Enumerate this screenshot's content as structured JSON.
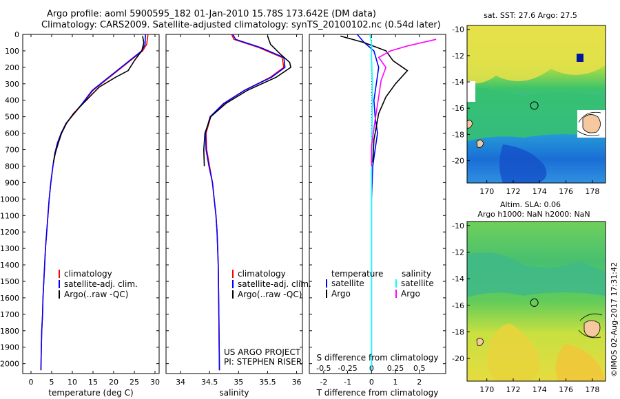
{
  "header": {
    "title_line1": "Argo profile: aoml 5900595_182 01-Jan-2010 15.78S 173.642E (DM data)",
    "title_line2": "Climatology: CARS2009. Satellite-adjusted climatology: synTS_20100102.nc (0.54d later)"
  },
  "chart_data": [
    {
      "type": "line",
      "id": "temperature",
      "xlabel": "temperature (deg C)",
      "ylabel": "",
      "xlim": [
        -2,
        31
      ],
      "ylim": [
        2060,
        0
      ],
      "xticks": [
        0,
        5,
        10,
        15,
        20,
        25,
        30
      ],
      "yticks": [
        0,
        100,
        200,
        300,
        400,
        500,
        600,
        700,
        800,
        900,
        1000,
        1100,
        1200,
        1300,
        1400,
        1500,
        1600,
        1700,
        1800,
        1900,
        2000
      ],
      "legend": [
        "climatology",
        "satellite-adj. clim.",
        "Argo(..raw -QC)"
      ],
      "series": [
        {
          "name": "climatology",
          "color": "#ff0000",
          "x": [
            28.3,
            28.0,
            27.0,
            24.5,
            22.0,
            19.0,
            15.0,
            12.5,
            10.5,
            8.5,
            7.3,
            6.4,
            5.8,
            5.3,
            4.8,
            4.4,
            4.1,
            3.8,
            3.5,
            3.3,
            3.1,
            2.9,
            2.8,
            2.6,
            2.5,
            2.4
          ],
          "y": [
            0,
            60,
            100,
            150,
            200,
            260,
            340,
            420,
            480,
            540,
            600,
            660,
            720,
            800,
            900,
            1000,
            1100,
            1200,
            1300,
            1400,
            1500,
            1600,
            1700,
            1800,
            1900,
            2040
          ]
        },
        {
          "name": "satellite-adj. clim.",
          "color": "#0000ff",
          "x": [
            27.7,
            27.6,
            26.8,
            24.3,
            21.8,
            18.8,
            14.8,
            12.4,
            10.4,
            8.5,
            7.3,
            6.4,
            5.8,
            5.3,
            4.8,
            4.4,
            4.1,
            3.8,
            3.5,
            3.3,
            3.1,
            2.9,
            2.8,
            2.6,
            2.5,
            2.4
          ],
          "y": [
            0,
            60,
            100,
            150,
            200,
            260,
            340,
            420,
            480,
            540,
            600,
            660,
            720,
            800,
            900,
            1000,
            1100,
            1200,
            1300,
            1400,
            1500,
            1600,
            1700,
            1800,
            1900,
            2040
          ]
        },
        {
          "name": "Argo(..raw -QC)",
          "color": "#000000",
          "x": [
            27.0,
            27.3,
            26.8,
            25.0,
            23.5,
            20.5,
            16.5,
            12.6,
            10.3,
            8.6,
            7.4,
            6.6,
            5.9,
            5.4
          ],
          "y": [
            10,
            50,
            100,
            160,
            220,
            260,
            320,
            420,
            480,
            540,
            600,
            660,
            720,
            780
          ]
        }
      ]
    },
    {
      "type": "line",
      "id": "salinity",
      "xlabel": "salinity",
      "xlim": [
        33.75,
        36.1
      ],
      "ylim": [
        2060,
        0
      ],
      "xticks": [
        34,
        34.5,
        35,
        35.5,
        36
      ],
      "legend": [
        "climatology",
        "satellite-adj. clim.",
        "Argo(..raw -QC)"
      ],
      "annotations": [
        "US ARGO PROJECT",
        "PI: STEPHEN RISER"
      ],
      "series": [
        {
          "name": "climatology",
          "color": "#ff0000",
          "x": [
            34.88,
            34.92,
            35.35,
            35.75,
            35.78,
            35.55,
            35.1,
            34.75,
            34.52,
            34.44,
            34.45,
            34.5,
            34.55,
            34.58,
            34.61,
            34.63,
            34.65,
            34.66,
            34.67
          ],
          "y": [
            0,
            30,
            80,
            140,
            200,
            260,
            340,
            420,
            500,
            600,
            700,
            800,
            900,
            1000,
            1100,
            1200,
            1400,
            1700,
            2040
          ]
        },
        {
          "name": "satellite-adj. clim.",
          "color": "#0000ff",
          "x": [
            34.9,
            34.95,
            35.38,
            35.78,
            35.8,
            35.57,
            35.1,
            34.74,
            34.51,
            34.43,
            34.44,
            34.49,
            34.55,
            34.58,
            34.61,
            34.63,
            34.65,
            34.66,
            34.67
          ],
          "y": [
            0,
            30,
            80,
            140,
            200,
            260,
            340,
            420,
            500,
            600,
            700,
            800,
            900,
            1000,
            1100,
            1200,
            1400,
            1700,
            2040
          ]
        },
        {
          "name": "Argo(..raw -QC)",
          "color": "#000000",
          "x": [
            35.5,
            35.55,
            35.72,
            35.88,
            35.9,
            35.65,
            35.15,
            34.78,
            34.52,
            34.42,
            34.4,
            34.41
          ],
          "y": [
            10,
            60,
            120,
            170,
            200,
            260,
            340,
            420,
            500,
            600,
            700,
            800
          ]
        }
      ]
    },
    {
      "type": "line",
      "id": "difference",
      "xlabel": "T difference from climatology",
      "x2label": "S difference from climatology",
      "xlim": [
        -2.6,
        3.1
      ],
      "ylim": [
        2060,
        0
      ],
      "xticks": [
        -2,
        -1,
        0,
        1,
        2
      ],
      "x2ticks": [
        -0.5,
        -0.25,
        0,
        0.25,
        0.5
      ],
      "legend_headers": [
        "temperature",
        "salinity"
      ],
      "legend": [
        "satellite",
        "Argo",
        "satellite",
        "Argo"
      ],
      "series": [
        {
          "name": "satellite",
          "group": "temperature",
          "color": "#0000ff",
          "x": [
            -0.6,
            -0.3,
            0.1,
            0.3,
            0.2,
            0.1,
            0.15,
            0.25,
            0.15,
            0.05,
            0.0,
            0.0,
            0.0
          ],
          "y": [
            0,
            50,
            100,
            200,
            300,
            400,
            500,
            600,
            700,
            800,
            1000,
            1500,
            2040
          ]
        },
        {
          "name": "Argo",
          "group": "temperature",
          "color": "#000000",
          "x": [
            -1.3,
            -0.3,
            0.6,
            0.9,
            1.5,
            1.0,
            0.6,
            0.3,
            0.2,
            0.1,
            0.05
          ],
          "y": [
            10,
            50,
            100,
            160,
            220,
            300,
            380,
            480,
            560,
            640,
            780
          ]
        },
        {
          "name": "satellite",
          "group": "salinity",
          "color": "#00ffff",
          "x": [
            -0.07,
            0.01,
            0.0,
            0.03,
            0.02,
            0.0,
            0.0,
            0.0
          ],
          "y": [
            0,
            60,
            120,
            300,
            600,
            900,
            1500,
            2040
          ]
        },
        {
          "name": "Argo",
          "group": "salinity",
          "color": "#ff00ff",
          "x": [
            2.7,
            1.5,
            0.8,
            0.3,
            0.6,
            0.4,
            0.3,
            0.15,
            0.0,
            0.0
          ],
          "y": [
            30,
            70,
            100,
            140,
            200,
            280,
            380,
            520,
            680,
            800
          ]
        }
      ]
    },
    {
      "type": "heatmap",
      "id": "sst_map",
      "title": "sat. SST: 27.6 Argo: 27.5",
      "xlim": [
        168.5,
        179
      ],
      "ylim": [
        -21.7,
        -9.7
      ],
      "xticks": [
        170,
        172,
        174,
        176,
        178
      ],
      "yticks": [
        -10,
        -12,
        -14,
        -16,
        -18,
        -20
      ],
      "marker": {
        "lon": 173.6,
        "lat": -15.8
      }
    },
    {
      "type": "heatmap",
      "id": "sla_map",
      "title": "Altim. SLA: 0.06",
      "subtitle": "Argo h1000: NaN h2000: NaN",
      "xlim": [
        168.5,
        179
      ],
      "ylim": [
        -21.7,
        -9.7
      ],
      "xticks": [
        170,
        172,
        174,
        176,
        178
      ],
      "yticks": [
        -10,
        -12,
        -14,
        -16,
        -18,
        -20
      ],
      "marker": {
        "lon": 173.6,
        "lat": -15.8
      }
    }
  ],
  "footer": {
    "credit": "©IMOS 02-Aug-2017 17:31:42"
  }
}
